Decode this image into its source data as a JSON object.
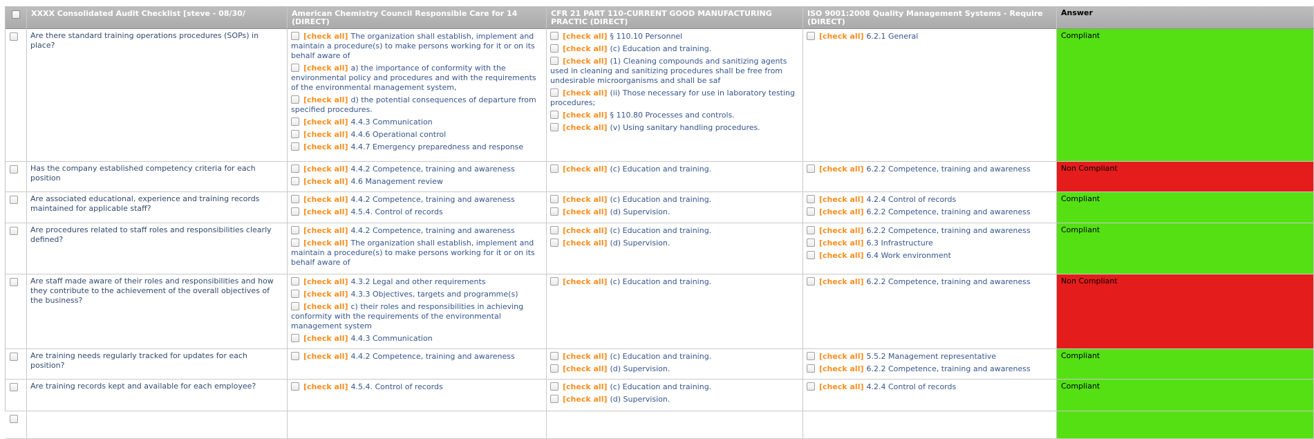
{
  "check_all_label": "[check all]",
  "colors": {
    "compliant_bg": "#55E014",
    "non_compliant_bg": "#E51C1C",
    "check_all": "#FB8D1E",
    "item_blue": "#35558E",
    "question_blue": "#2F4A6E",
    "header_text": "#FFFFFF"
  },
  "table": {
    "header": {
      "columns": [
        {
          "label": "XXXX Consolidated Audit Checklist [steve - 08/30/"
        },
        {
          "label": "American Chemistry Council Responsible Care for 14 (DIRECT)"
        },
        {
          "label": "CFR 21 PART 110-CURRENT GOOD MANUFACTURING PRACTIC (DIRECT)"
        },
        {
          "label": "ISO 9001:2008 Quality Management Systems - Require (DIRECT)"
        },
        {
          "label": "Answer"
        }
      ]
    },
    "rows": [
      {
        "question": "Are there standard training operations procedures (SOPs) in place?",
        "acc": [
          "The organization shall establish, implement and maintain a procedure(s) to make persons working for it or on its behalf aware of",
          "a) the importance of conformity with the environmental policy and procedures and with the requirements of the environmental management system,",
          "d) the potential consequences of departure from specified procedures.",
          "4.4.3 Communication",
          "4.4.6 Operational control",
          "4.4.7 Emergency preparedness and response"
        ],
        "cfr": [
          "§ 110.10 Personnel",
          "(c) Education and training.",
          "(1) Cleaning compounds and sanitizing agents used in cleaning and sanitizing procedures shall be free from undesirable microorganisms and shall be saf",
          "(ii) Those necessary for use in laboratory testing procedures;",
          "§ 110.80 Processes and controls.",
          "(v) Using sanitary handling procedures."
        ],
        "iso": [
          "6.2.1 General"
        ],
        "answer": {
          "label": "Compliant",
          "status": "compliant"
        }
      },
      {
        "question": "Has the company established competency criteria for each position",
        "acc": [
          "4.4.2 Competence, training and awareness",
          "4.6 Management review"
        ],
        "cfr": [
          "(c) Education and training."
        ],
        "iso": [
          "6.2.2 Competence, training and awareness"
        ],
        "answer": {
          "label": "Non Compliant",
          "status": "non_compliant"
        }
      },
      {
        "question": "Are associated educational, experience and training records maintained for applicable staff?",
        "acc": [
          "4.4.2 Competence, training and awareness",
          "4.5.4. Control of records"
        ],
        "cfr": [
          "(c) Education and training.",
          "(d) Supervision."
        ],
        "iso": [
          "4.2.4 Control of records",
          "6.2.2 Competence, training and awareness"
        ],
        "answer": {
          "label": "Compliant",
          "status": "compliant"
        }
      },
      {
        "question": "Are procedures related to staff roles and responsibilities clearly defined?",
        "acc": [
          "4.4.2 Competence, training and awareness",
          "The organization shall establish, implement and maintain a procedure(s) to make persons working for it or on its behalf aware of"
        ],
        "cfr": [
          "(c) Education and training.",
          "(d) Supervision."
        ],
        "iso": [
          "6.2.2 Competence, training and awareness",
          "6.3 Infrastructure",
          "6.4 Work environment"
        ],
        "answer": {
          "label": "Compliant",
          "status": "compliant"
        }
      },
      {
        "question": "Are staff made aware of their roles and responsibilities and how they contribute to the achievement of the overall objectives of the business?",
        "acc": [
          "4.3.2 Legal and other requirements",
          "4.3.3 Objectives, targets and programme(s)",
          "c) their roles and responsibilities in achieving conformity with the requirements of the environmental management system",
          "4.4.3 Communication"
        ],
        "cfr": [
          "(c) Education and training."
        ],
        "iso": [
          "6.2.2 Competence, training and awareness"
        ],
        "answer": {
          "label": "Non Compliant",
          "status": "non_compliant"
        }
      },
      {
        "question": "Are training needs regularly tracked for updates for each position?",
        "acc": [
          "4.4.2 Competence, training and awareness"
        ],
        "cfr": [
          "(c) Education and training.",
          "(d) Supervision."
        ],
        "iso": [
          "5.5.2 Management representative",
          "6.2.2 Competence, training and awareness"
        ],
        "answer": {
          "label": "Compliant",
          "status": "compliant"
        }
      },
      {
        "question": "Are training records kept and available for each employee?",
        "acc": [
          "4.5.4. Control of records"
        ],
        "cfr": [
          "(c) Education and training.",
          "(d) Supervision."
        ],
        "iso": [
          "4.2.4 Control of records"
        ],
        "answer": {
          "label": "Compliant",
          "status": "compliant"
        }
      },
      {
        "question": "",
        "acc": [],
        "cfr": [],
        "iso": [],
        "answer": {
          "label": "",
          "status": "compliant"
        }
      }
    ]
  }
}
